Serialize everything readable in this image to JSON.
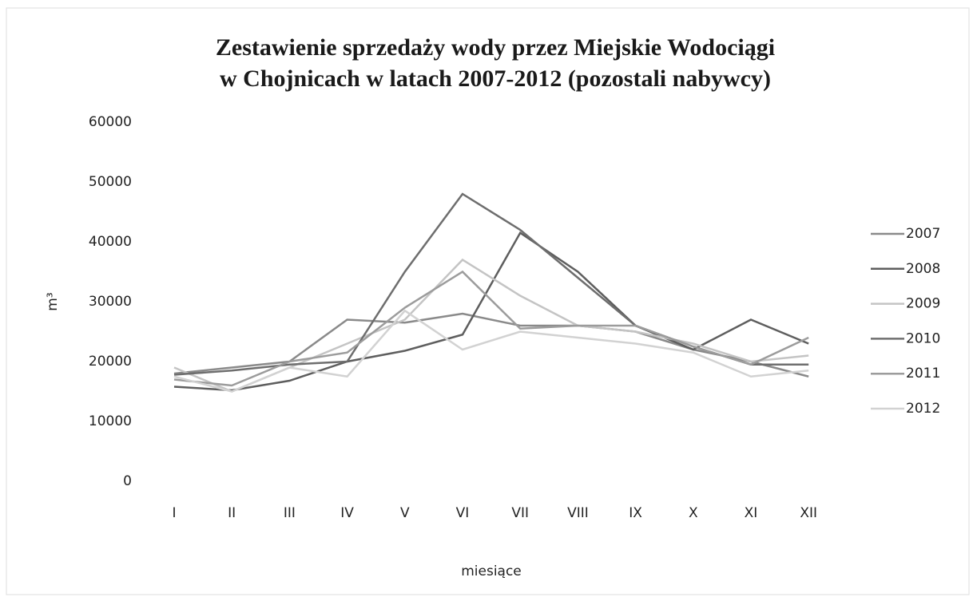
{
  "chart_data": {
    "type": "line",
    "title": [
      "Zestawienie sprzedaży wody przez Miejskie Wodociągi",
      "w Chojnicach w latach 2007-2012 (pozostali nabywcy)"
    ],
    "y_label": "m³",
    "x_label": "miesiące",
    "categories": [
      "I",
      "II",
      "III",
      "IV",
      "V",
      "VI",
      "VII",
      "VIII",
      "IX",
      "X",
      "XI",
      "XII"
    ],
    "ylim": [
      0,
      60000
    ],
    "yticks": [
      0,
      10000,
      20000,
      30000,
      40000,
      50000,
      60000
    ],
    "grid": false,
    "legend": "right",
    "series": [
      {
        "name": "2007",
        "color": "#8a8a8a",
        "values": [
          18000,
          19000,
          20000,
          27000,
          26500,
          28000,
          26000,
          26000,
          25000,
          22000,
          20000,
          17500
        ]
      },
      {
        "name": "2008",
        "color": "#5e5e5e",
        "values": [
          15800,
          15200,
          16800,
          20000,
          21800,
          24500,
          41500,
          35000,
          26000,
          22000,
          27000,
          23000
        ]
      },
      {
        "name": "2009",
        "color": "#c4c4c4",
        "values": [
          19000,
          15000,
          19000,
          23000,
          27000,
          37000,
          31000,
          26000,
          25000,
          23000,
          20000,
          21000
        ]
      },
      {
        "name": "2010",
        "color": "#6e6e6e",
        "values": [
          17800,
          18500,
          19500,
          20000,
          35000,
          48000,
          42000,
          34000,
          26000,
          22500,
          19500,
          19500
        ]
      },
      {
        "name": "2011",
        "color": "#9c9c9c",
        "values": [
          17000,
          16000,
          20000,
          21500,
          29000,
          35000,
          25500,
          26000,
          26000,
          22500,
          19500,
          24000
        ]
      },
      {
        "name": "2012",
        "color": "#d2d2d2",
        "values": [
          17500,
          15000,
          19000,
          17500,
          28500,
          22000,
          25000,
          24000,
          23000,
          21500,
          17500,
          18500
        ]
      }
    ]
  }
}
